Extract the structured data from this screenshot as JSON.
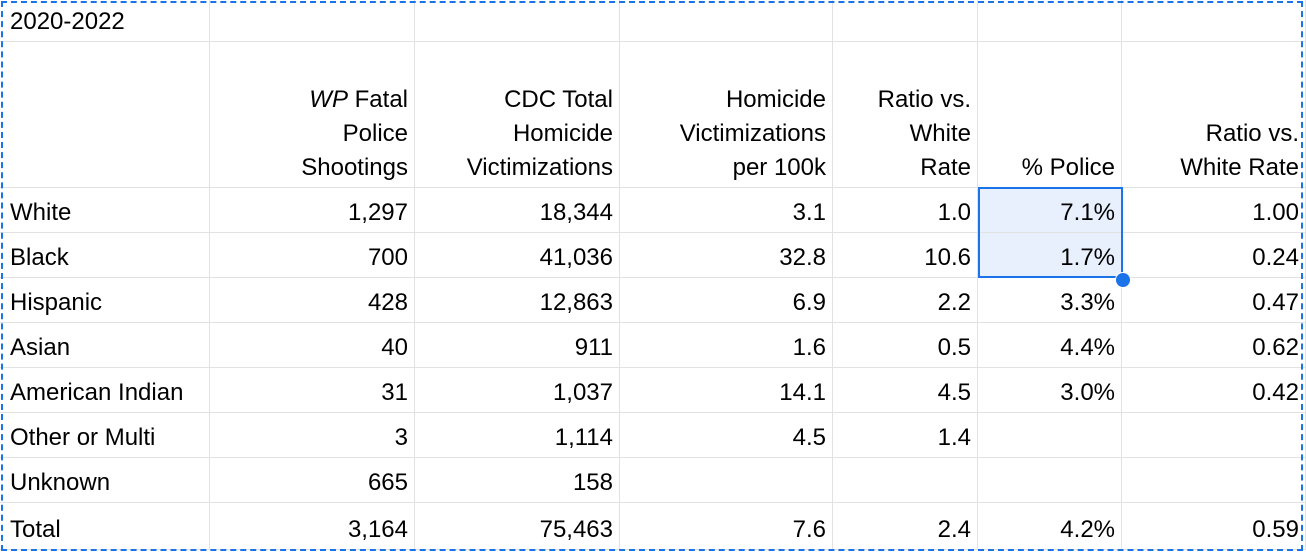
{
  "sheet": {
    "title": "2020-2022",
    "headers": [
      {
        "italic": "WP",
        "lines": [
          "Fatal",
          "Police",
          "Shootings"
        ]
      },
      {
        "lines": [
          "CDC Total",
          "Homicide",
          "Victimizations"
        ]
      },
      {
        "lines": [
          "Homicide",
          "Victimizations",
          "per 100k"
        ]
      },
      {
        "lines": [
          "Ratio vs.",
          "White",
          "Rate"
        ]
      },
      {
        "lines": [
          "% Police"
        ]
      },
      {
        "lines": [
          "Ratio vs.",
          "White Rate"
        ]
      }
    ],
    "rows": [
      [
        "White",
        "1,297",
        "18,344",
        "3.1",
        "1.0",
        "7.1%",
        "1.00"
      ],
      [
        "Black",
        "700",
        "41,036",
        "32.8",
        "10.6",
        "1.7%",
        "0.24"
      ],
      [
        "Hispanic",
        "428",
        "12,863",
        "6.9",
        "2.2",
        "3.3%",
        "0.47"
      ],
      [
        "Asian",
        "40",
        "911",
        "1.6",
        "0.5",
        "4.4%",
        "0.62"
      ],
      [
        "American Indian",
        "31",
        "1,037",
        "14.1",
        "4.5",
        "3.0%",
        "0.42"
      ],
      [
        "Other or Multi",
        "3",
        "1,114",
        "4.5",
        "1.4",
        null,
        null
      ],
      [
        "Unknown",
        "665",
        "158",
        null,
        null,
        null,
        null
      ],
      [
        "Total",
        "3,164",
        "75,463",
        "7.6",
        "2.4",
        "4.2%",
        "0.59"
      ]
    ]
  }
}
